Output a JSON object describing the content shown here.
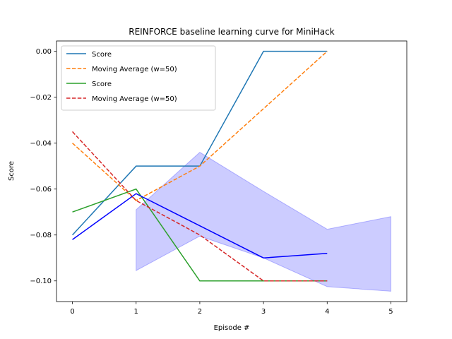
{
  "chart_data": {
    "type": "line",
    "title": "REINFORCE baseline learning curve for MiniHack",
    "xlabel": "Episode #",
    "ylabel": "Score",
    "xlim": [
      -0.25,
      5.25
    ],
    "ylim": [
      -0.109,
      0.0045
    ],
    "xticks": [
      0,
      1,
      2,
      3,
      4,
      5
    ],
    "xtick_labels": [
      "0",
      "1",
      "2",
      "3",
      "4",
      "5"
    ],
    "yticks": [
      0.0,
      -0.02,
      -0.04,
      -0.06,
      -0.08,
      -0.1
    ],
    "ytick_labels": [
      "0.00",
      "−0.02",
      "−0.04",
      "−0.06",
      "−0.08",
      "−0.10"
    ],
    "grid": false,
    "legend_position": "top-left",
    "series": [
      {
        "name": "Score",
        "style": "solid",
        "color": "#1f77b4",
        "legend": true,
        "x": [
          0,
          1,
          2,
          3,
          4
        ],
        "y": [
          -0.08,
          -0.05,
          -0.05,
          0.0,
          0.0
        ]
      },
      {
        "name": "Moving Average (w=50)",
        "style": "dashed",
        "color": "#ff7f0e",
        "legend": true,
        "x": [
          0,
          1,
          2,
          3,
          4
        ],
        "y": [
          -0.04,
          -0.065,
          -0.05,
          -0.025,
          0.0
        ]
      },
      {
        "name": "Score",
        "style": "solid",
        "color": "#2ca02c",
        "legend": true,
        "x": [
          0,
          1,
          2,
          3,
          4
        ],
        "y": [
          -0.07,
          -0.06,
          -0.1,
          -0.1,
          -0.1
        ]
      },
      {
        "name": "Moving Average (w=50)",
        "style": "dashed",
        "color": "#d62728",
        "legend": true,
        "x": [
          0,
          1,
          2,
          3,
          4
        ],
        "y": [
          -0.035,
          -0.065,
          -0.08,
          -0.1,
          -0.1
        ]
      },
      {
        "style": "solid",
        "color": "#0000ff",
        "legend": false,
        "x": [
          0,
          1,
          2,
          3,
          4
        ],
        "y": [
          -0.082,
          -0.062,
          -0.076,
          -0.09,
          -0.088
        ]
      }
    ],
    "band": {
      "color": "#0000ff",
      "opacity": 0.2,
      "x": [
        1,
        2,
        3,
        4,
        5
      ],
      "upper": [
        -0.069,
        -0.044,
        -0.061,
        -0.0775,
        -0.072
      ],
      "lower": [
        -0.0955,
        -0.0805,
        -0.09,
        -0.1025,
        -0.1045
      ]
    }
  }
}
